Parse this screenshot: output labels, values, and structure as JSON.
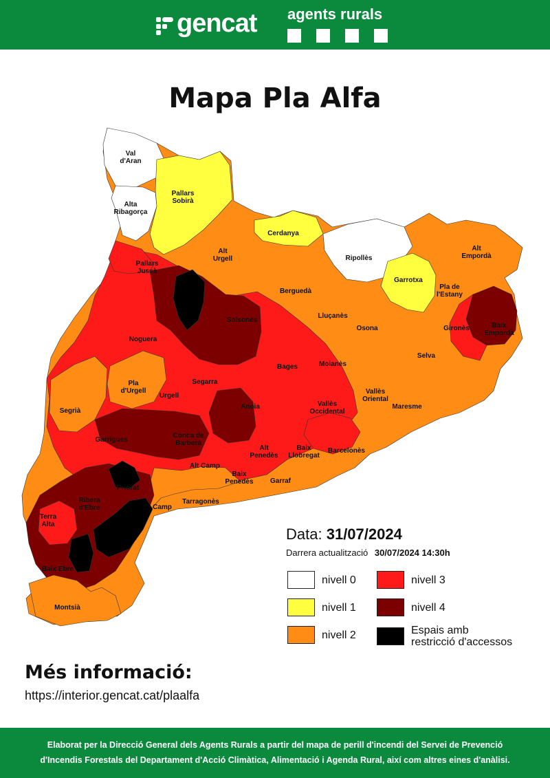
{
  "header": {
    "brand": "gencat",
    "sub_brand": "agents rurals",
    "background_color": "#0b8a3e"
  },
  "title": "Mapa Pla Alfa",
  "level_colors": {
    "nivell_0": "#ffffff",
    "nivell_1": "#ffff40",
    "nivell_2": "#ff8c14",
    "nivell_3": "#ff1a1a",
    "nivell_4": "#7d0000",
    "espais": "#000000"
  },
  "map": {
    "regions": [
      {
        "name": "Val d'Aran",
        "level": 0
      },
      {
        "name": "Alta Ribagorça",
        "level": 0
      },
      {
        "name": "Pallars Sobirà",
        "level": 1
      },
      {
        "name": "Cerdanya",
        "level": 1
      },
      {
        "name": "Ripollès",
        "level": 0
      },
      {
        "name": "Garrotxa",
        "level": 1
      },
      {
        "name": "Alt Empordà",
        "level": 2
      },
      {
        "name": "Pallars Jussà",
        "level": 3
      },
      {
        "name": "Alt Urgell",
        "level": 2
      },
      {
        "name": "Berguedà",
        "level": 2
      },
      {
        "name": "Pla de l'Estany",
        "level": 2
      },
      {
        "name": "Solsonès",
        "level": 4
      },
      {
        "name": "Lluçanès",
        "level": 2
      },
      {
        "name": "Noguera",
        "level": 3
      },
      {
        "name": "Osona",
        "level": 2
      },
      {
        "name": "Gironès",
        "level": 2
      },
      {
        "name": "Baix Empordà",
        "level": 4
      },
      {
        "name": "Bages",
        "level": 3
      },
      {
        "name": "Moianès",
        "level": 3
      },
      {
        "name": "Selva",
        "level": 2
      },
      {
        "name": "Pla d'Urgell",
        "level": 2
      },
      {
        "name": "Segarra",
        "level": 3
      },
      {
        "name": "Urgell",
        "level": 3
      },
      {
        "name": "Vallès Oriental",
        "level": 2
      },
      {
        "name": "Segrià",
        "level": 2
      },
      {
        "name": "Anoia",
        "level": 4
      },
      {
        "name": "Maresme",
        "level": 2
      },
      {
        "name": "Vallès Occidental",
        "level": 3
      },
      {
        "name": "Garrigues",
        "level": 4
      },
      {
        "name": "Conca de Barberà",
        "level": 4
      },
      {
        "name": "Barcelonès",
        "level": 3
      },
      {
        "name": "Alt Penedès",
        "level": 3
      },
      {
        "name": "Baix Llobregat",
        "level": 3
      },
      {
        "name": "Alt Camp",
        "level": 3
      },
      {
        "name": "Baix Penedès",
        "level": 3
      },
      {
        "name": "Garraf",
        "level": 3
      },
      {
        "name": "Priorat",
        "level": 4
      },
      {
        "name": "Ribera d'Ebre",
        "level": 4
      },
      {
        "name": "Tarragonès",
        "level": 2
      },
      {
        "name": "Baix Camp",
        "level": 2
      },
      {
        "name": "Terra Alta",
        "level": 4
      },
      {
        "name": "Baix Ebre",
        "level": 4
      },
      {
        "name": "Montsià",
        "level": 2
      }
    ],
    "labels": {
      "val_daran": [
        "Val",
        "d'Aran"
      ],
      "pallars_sobira": [
        "Pallars",
        "Sobirà"
      ],
      "alta_ribagorca": [
        "Alta",
        "Ribagorça"
      ],
      "cerdanya": [
        "Cerdanya"
      ],
      "ripolles": [
        "Ripollès"
      ],
      "alt_emporda": [
        "Alt",
        "Empordà"
      ],
      "pallars_jussa": [
        "Pallars",
        "Jussà"
      ],
      "alt_urgell": [
        "Alt",
        "Urgell"
      ],
      "garrotxa": [
        "Garrotxa"
      ],
      "bergueda": [
        "Berguedà"
      ],
      "pla_estany": [
        "Pla de",
        "l'Estany"
      ],
      "solsones": [
        "Solsonès"
      ],
      "llucanes": [
        "Lluçanès"
      ],
      "noguera": [
        "Noguera"
      ],
      "osona": [
        "Osona"
      ],
      "girones": [
        "Gironès"
      ],
      "baix_emporda": [
        "Baix",
        "Empordà"
      ],
      "bages": [
        "Bages"
      ],
      "moianes": [
        "Moianès"
      ],
      "selva": [
        "Selva"
      ],
      "pla_urgell": [
        "Pla",
        "d'Urgell"
      ],
      "segarra": [
        "Segarra"
      ],
      "urgell": [
        "Urgell"
      ],
      "valles_oriental": [
        "Vallès",
        "Oriental"
      ],
      "segria": [
        "Segrià"
      ],
      "anoia": [
        "Anoia"
      ],
      "maresme": [
        "Maresme"
      ],
      "valles_occidental": [
        "Vallès",
        "Occidental"
      ],
      "garrigues": [
        "Garrigues"
      ],
      "conca": [
        "Conca de",
        "Barberà"
      ],
      "barcelones": [
        "Barcelonès"
      ],
      "alt_penedes": [
        "Alt",
        "Penedès"
      ],
      "baix_llobregat": [
        "Baix",
        "Llobregat"
      ],
      "alt_camp": [
        "Alt Camp"
      ],
      "baix_penedes": [
        "Baix",
        "Penedès"
      ],
      "garraf": [
        "Garraf"
      ],
      "priorat": [
        "Priorat"
      ],
      "ribera": [
        "Ribera",
        "d'Ebre"
      ],
      "tarragones": [
        "Tarragonès"
      ],
      "baix_camp": [
        "Camp"
      ],
      "terra_alta": [
        "Terra",
        "Alta"
      ],
      "baix_ebre": [
        "Baix Ebre"
      ],
      "montsia": [
        "Montsià"
      ]
    }
  },
  "date": {
    "label": "Data:",
    "value": "31/07/2024",
    "update_label": "Darrera actualització",
    "update_value": "30/07/2024 14:30h"
  },
  "legend": {
    "n0": "nivell 0",
    "n1": "nivell 1",
    "n2": "nivell 2",
    "n3": "nivell 3",
    "n4": "nivell 4",
    "espais_line1": "Espais amb",
    "espais_line2": "restricció d'accessos"
  },
  "more_info": {
    "heading": "Més informació:",
    "url": "https://interior.gencat.cat/plaalfa"
  },
  "footer": {
    "line1": "Elaborat per la Direcció General dels Agents Rurals a partir del mapa de perill d'incendi del Servei de Prevenció",
    "line2": "d'Incendis Forestals del Departament d'Acció Climàtica, Alimentació i Agenda Rural, així com altres eines d'anàlisi."
  }
}
